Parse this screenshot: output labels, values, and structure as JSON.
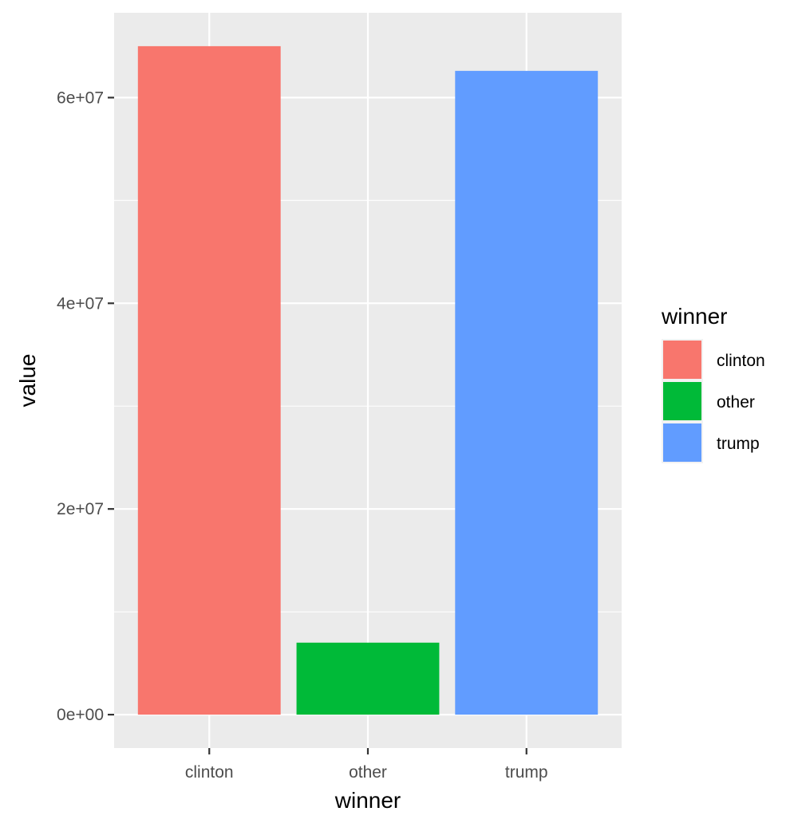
{
  "chart_data": {
    "type": "bar",
    "categories": [
      "clinton",
      "other",
      "trump"
    ],
    "values": [
      65000000,
      7000000,
      62600000
    ],
    "colors": [
      "#F8766D",
      "#00BA38",
      "#619CFF"
    ],
    "xlabel": "winner",
    "ylabel": "value",
    "ylim": [
      -3250000,
      68250000
    ],
    "yticks": [
      0,
      20000000,
      40000000,
      60000000
    ],
    "ytick_labels": [
      "0e+00",
      "2e+07",
      "4e+07",
      "6e+07"
    ],
    "grid": true,
    "panel_background": "#EBEBEB",
    "grid_color": "#FFFFFF",
    "legend": {
      "title": "winner",
      "position": "right",
      "items": [
        {
          "label": "clinton",
          "color": "#F8766D"
        },
        {
          "label": "other",
          "color": "#00BA38"
        },
        {
          "label": "trump",
          "color": "#619CFF"
        }
      ]
    }
  }
}
